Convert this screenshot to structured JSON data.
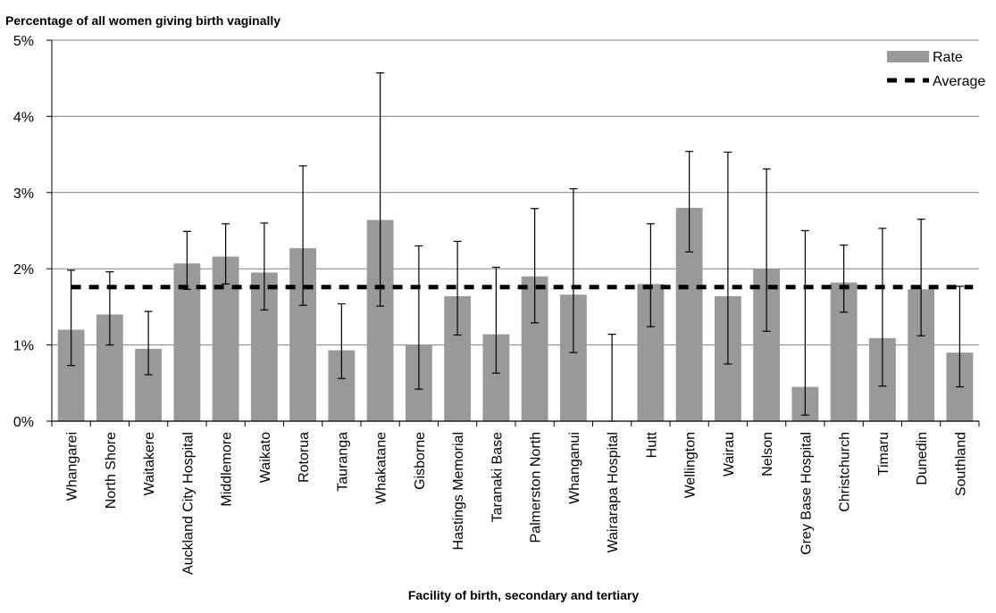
{
  "chart_data": {
    "type": "bar",
    "title": "Percentage of all women giving birth vaginally",
    "xlabel": "Facility of birth, secondary and tertiary",
    "ylabel": "",
    "ylim": [
      0,
      5
    ],
    "y_ticks": [
      "0%",
      "1%",
      "2%",
      "3%",
      "4%",
      "5%"
    ],
    "grid": true,
    "legend_position": "top-right",
    "categories": [
      "Whangarei",
      "North Shore",
      "Waitakere",
      "Auckland City Hospital",
      "Middlemore",
      "Waikato",
      "Rotorua",
      "Tauranga",
      "Whakatane",
      "Gisborne",
      "Hastings Memorial",
      "Taranaki Base",
      "Palmerston North",
      "Whanganui",
      "Wairarapa Hospital",
      "Hutt",
      "Wellington",
      "Wairau",
      "Nelson",
      "Grey Base Hospital",
      "Christchurch",
      "Timaru",
      "Dunedin",
      "Southland"
    ],
    "series": [
      {
        "name": "Rate",
        "values": [
          1.2,
          1.4,
          0.95,
          2.07,
          2.16,
          1.95,
          2.27,
          0.93,
          2.64,
          1.0,
          1.64,
          1.14,
          1.9,
          1.66,
          0.0,
          1.8,
          2.8,
          1.64,
          2.0,
          0.45,
          1.82,
          1.09,
          1.73,
          0.9
        ],
        "error_low": [
          0.73,
          1.0,
          0.61,
          1.73,
          1.8,
          1.46,
          1.52,
          0.56,
          1.51,
          0.42,
          1.13,
          0.63,
          1.29,
          0.9,
          0.0,
          1.24,
          2.22,
          0.75,
          1.18,
          0.08,
          1.43,
          0.46,
          1.12,
          0.45
        ],
        "error_high": [
          1.98,
          1.96,
          1.44,
          2.49,
          2.59,
          2.6,
          3.35,
          1.54,
          4.57,
          2.3,
          2.36,
          2.02,
          2.79,
          3.05,
          1.14,
          2.59,
          3.54,
          3.53,
          3.31,
          2.5,
          2.31,
          2.53,
          2.65,
          1.77
        ],
        "color": "#999999"
      },
      {
        "name": "Average",
        "value": 1.76,
        "style": "dashed",
        "color": "#000000"
      }
    ]
  }
}
